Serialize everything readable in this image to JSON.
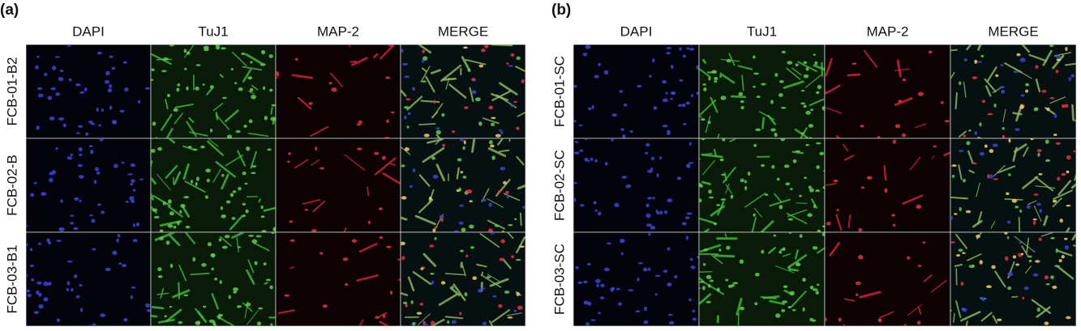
{
  "panels": [
    {
      "label": "(a)",
      "columns": [
        "DAPI",
        "TuJ1",
        "MAP-2",
        "MERGE"
      ],
      "rows": [
        "FCB-01-B2",
        "FCB-02-B",
        "FCB-03-B1"
      ]
    },
    {
      "label": "(b)",
      "columns": [
        "DAPI",
        "TuJ1",
        "MAP-2",
        "MERGE"
      ],
      "rows": [
        "FCB-01-SC",
        "FCB-02-SC",
        "FCB-03-SC"
      ]
    }
  ]
}
